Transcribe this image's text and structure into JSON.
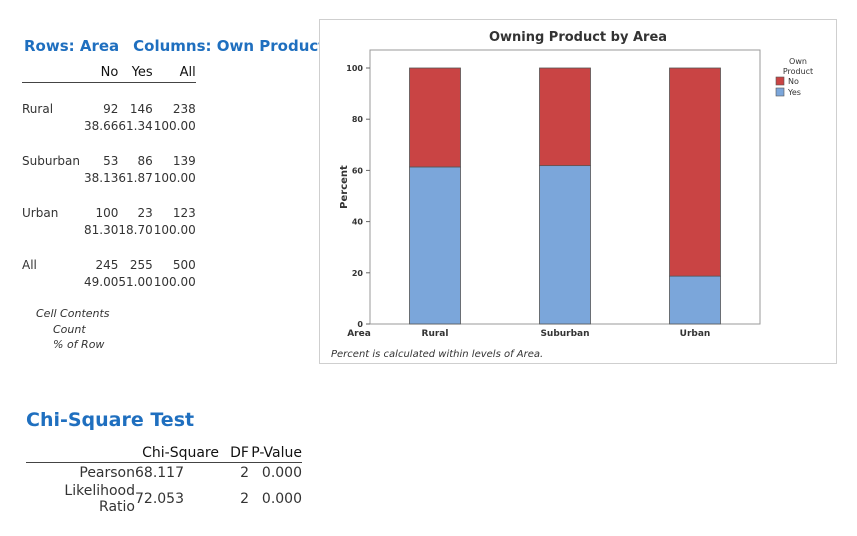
{
  "crosstab": {
    "title_rows": "Rows: Area",
    "title_cols": "Columns: Own Product",
    "headers": [
      "",
      "No",
      "Yes",
      "All"
    ],
    "rows": [
      {
        "label": "Rural",
        "count": [
          "92",
          "146",
          "238"
        ],
        "pct": [
          "38.66",
          "61.34",
          "100.00"
        ]
      },
      {
        "label": "Suburban",
        "count": [
          "53",
          "86",
          "139"
        ],
        "pct": [
          "38.13",
          "61.87",
          "100.00"
        ]
      },
      {
        "label": "Urban",
        "count": [
          "100",
          "23",
          "123"
        ],
        "pct": [
          "81.30",
          "18.70",
          "100.00"
        ]
      },
      {
        "label": "All",
        "count": [
          "245",
          "255",
          "500"
        ],
        "pct": [
          "49.00",
          "51.00",
          "100.00"
        ]
      }
    ],
    "cell_contents": {
      "heading": "Cell Contents",
      "line1": "Count",
      "line2": "% of Row"
    }
  },
  "chart_data": {
    "type": "bar",
    "stacked": true,
    "title": "Owning Product by Area",
    "xlabel": "Area",
    "ylabel": "Percent",
    "categories": [
      "Rural",
      "Suburban",
      "Urban"
    ],
    "series": [
      {
        "name": "Yes",
        "values": [
          61.34,
          61.87,
          18.7
        ],
        "color": "#7ba6da"
      },
      {
        "name": "No",
        "values": [
          38.66,
          38.13,
          81.3
        ],
        "color": "#c94444"
      }
    ],
    "ylim": [
      0,
      100
    ],
    "yticks": [
      0,
      20,
      40,
      60,
      80,
      100
    ],
    "legend_title": "Own Product",
    "legend_order": [
      "No",
      "Yes"
    ],
    "legend_position": "right",
    "footnote": "Percent is calculated within levels of Area.",
    "grid": false
  },
  "chi_square": {
    "title": "Chi-Square Test",
    "headers": [
      "",
      "Chi-Square",
      "DF",
      "P-Value"
    ],
    "rows": [
      {
        "label": "Pearson",
        "chi": "68.117",
        "df": "2",
        "p": "0.000"
      },
      {
        "label": "Likelihood Ratio",
        "chi": "72.053",
        "df": "2",
        "p": "0.000"
      }
    ]
  }
}
